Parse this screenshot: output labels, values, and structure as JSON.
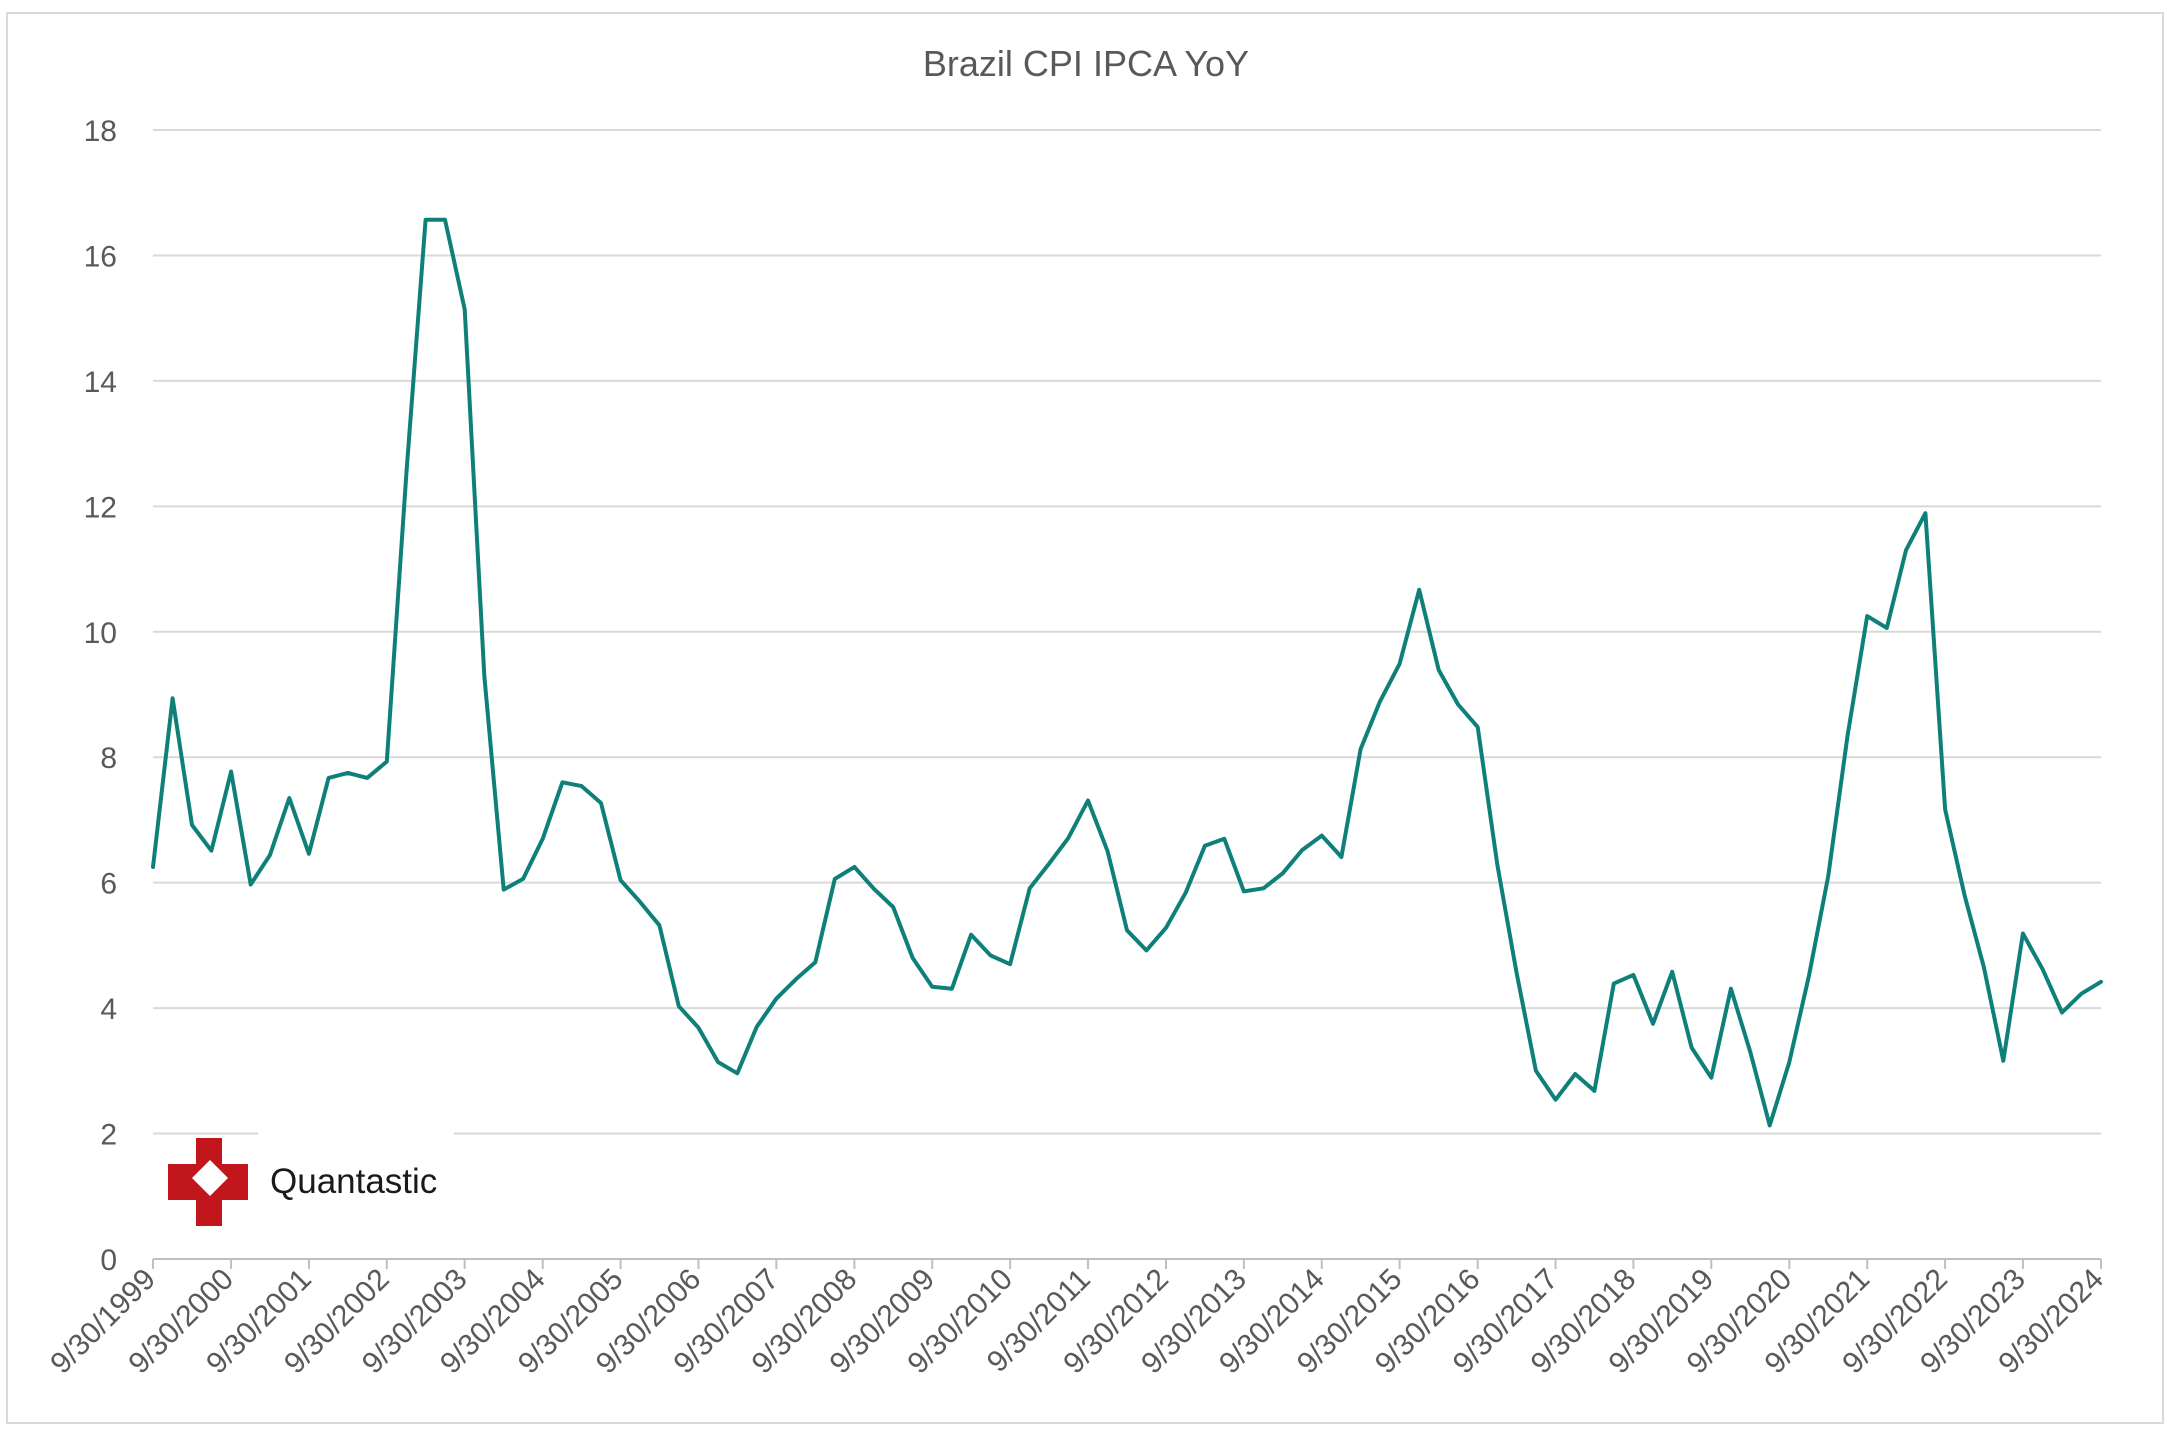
{
  "chart_data": {
    "type": "line",
    "title": "Brazil CPI IPCA YoY",
    "xlabel": "",
    "ylabel": "",
    "ylim": [
      0,
      18
    ],
    "yticks": [
      0,
      2,
      4,
      6,
      8,
      10,
      12,
      14,
      16,
      18
    ],
    "xticks": [
      "9/30/1999",
      "9/30/2000",
      "9/30/2001",
      "9/30/2002",
      "9/30/2003",
      "9/30/2004",
      "9/30/2005",
      "9/30/2006",
      "9/30/2007",
      "9/30/2008",
      "9/30/2009",
      "9/30/2010",
      "9/30/2011",
      "9/30/2012",
      "9/30/2013",
      "9/30/2014",
      "9/30/2015",
      "9/30/2016",
      "9/30/2017",
      "9/30/2018",
      "9/30/2019",
      "9/30/2020",
      "9/30/2021",
      "9/30/2022",
      "9/30/2023",
      "9/30/2024"
    ],
    "grid": true,
    "legend": "none",
    "series": [
      {
        "color": "#0e8079",
        "x": [
          "1999-09-30",
          "1999-12-31",
          "2000-03-31",
          "2000-06-30",
          "2000-09-30",
          "2000-12-31",
          "2001-03-31",
          "2001-06-30",
          "2001-09-30",
          "2001-12-31",
          "2002-03-31",
          "2002-06-30",
          "2002-09-30",
          "2002-12-31",
          "2003-03-31",
          "2003-06-30",
          "2003-09-30",
          "2003-12-31",
          "2004-03-31",
          "2004-06-30",
          "2004-09-30",
          "2004-12-31",
          "2005-03-31",
          "2005-06-30",
          "2005-09-30",
          "2005-12-31",
          "2006-03-31",
          "2006-06-30",
          "2006-09-30",
          "2006-12-31",
          "2007-03-31",
          "2007-06-30",
          "2007-09-30",
          "2007-12-31",
          "2008-03-31",
          "2008-06-30",
          "2008-09-30",
          "2008-12-31",
          "2009-03-31",
          "2009-06-30",
          "2009-09-30",
          "2009-12-31",
          "2010-03-31",
          "2010-06-30",
          "2010-09-30",
          "2010-12-31",
          "2011-03-31",
          "2011-06-30",
          "2011-09-30",
          "2011-12-31",
          "2012-03-31",
          "2012-06-30",
          "2012-09-30",
          "2012-12-31",
          "2013-03-31",
          "2013-06-30",
          "2013-09-30",
          "2013-12-31",
          "2014-03-31",
          "2014-06-30",
          "2014-09-30",
          "2014-12-31",
          "2015-03-31",
          "2015-06-30",
          "2015-09-30",
          "2015-12-31",
          "2016-03-31",
          "2016-06-30",
          "2016-09-30",
          "2016-12-31",
          "2017-03-31",
          "2017-06-30",
          "2017-09-30",
          "2017-12-31",
          "2018-03-31",
          "2018-06-30",
          "2018-09-30",
          "2018-12-31",
          "2019-03-31",
          "2019-06-30",
          "2019-09-30",
          "2019-12-31",
          "2020-03-31",
          "2020-06-30",
          "2020-09-30",
          "2020-12-31",
          "2021-03-31",
          "2021-06-30",
          "2021-09-30",
          "2021-12-31",
          "2022-03-31",
          "2022-06-30",
          "2022-09-30",
          "2022-12-31",
          "2023-03-31",
          "2023-06-30",
          "2023-09-30",
          "2023-12-31",
          "2024-03-31",
          "2024-06-30",
          "2024-09-30"
        ],
        "values": [
          6.25,
          8.94,
          6.92,
          6.51,
          7.77,
          5.97,
          6.44,
          7.35,
          6.46,
          7.67,
          7.75,
          7.67,
          7.93,
          12.53,
          16.57,
          16.57,
          15.14,
          9.3,
          5.89,
          6.06,
          6.7,
          7.6,
          7.54,
          7.27,
          6.04,
          5.69,
          5.32,
          4.03,
          3.69,
          3.14,
          2.96,
          3.7,
          4.15,
          4.46,
          4.73,
          6.06,
          6.25,
          5.9,
          5.61,
          4.8,
          4.34,
          4.31,
          5.17,
          4.84,
          4.7,
          5.91,
          6.3,
          6.71,
          7.31,
          6.5,
          5.24,
          4.92,
          5.28,
          5.84,
          6.59,
          6.7,
          5.86,
          5.91,
          6.15,
          6.52,
          6.75,
          6.41,
          8.13,
          8.89,
          9.49,
          10.67,
          9.39,
          8.84,
          8.48,
          6.29,
          4.57,
          3.0,
          2.54,
          2.95,
          2.68,
          4.39,
          4.53,
          3.75,
          4.58,
          3.37,
          2.89,
          4.31,
          3.3,
          2.13,
          3.14,
          4.52,
          6.1,
          8.35,
          10.25,
          10.06,
          11.3,
          11.89,
          7.17,
          5.79,
          4.65,
          3.16,
          5.19,
          4.62,
          3.93,
          4.23,
          4.42
        ]
      }
    ]
  },
  "logo": {
    "text": "Quantastic",
    "color": "#c0161c"
  }
}
